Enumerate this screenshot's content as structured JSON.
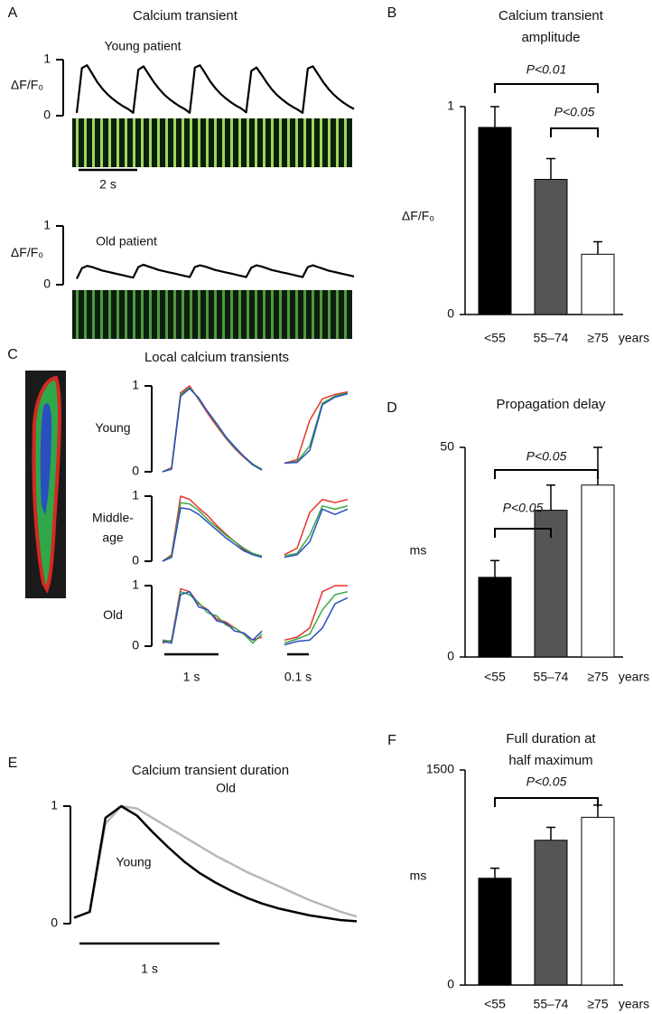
{
  "chart_data": [
    {
      "panel": "A",
      "type": "line",
      "title": "Calcium transient",
      "ylabel": "ΔF/F₀",
      "ylim": [
        0,
        1
      ],
      "yticks": [
        0,
        1
      ],
      "scale_bar": "2 s",
      "series": [
        {
          "name": "Young patient",
          "color": "#000000",
          "values": [
            0.05,
            0.85,
            0.9,
            0.75,
            0.6,
            0.48,
            0.38,
            0.3,
            0.23,
            0.17,
            0.12,
            0.05,
            0.82,
            0.88,
            0.74,
            0.6,
            0.48,
            0.38,
            0.3,
            0.23,
            0.17,
            0.12,
            0.05,
            0.86,
            0.9,
            0.76,
            0.61,
            0.49,
            0.39,
            0.31,
            0.24,
            0.18,
            0.13,
            0.06,
            0.8,
            0.86,
            0.73,
            0.59,
            0.47,
            0.37,
            0.29,
            0.22,
            0.16,
            0.11,
            0.05,
            0.84,
            0.88,
            0.74,
            0.6,
            0.48,
            0.38,
            0.3,
            0.23,
            0.17,
            0.12
          ]
        },
        {
          "name": "Old patient",
          "color": "#000000",
          "values": [
            0.1,
            0.28,
            0.32,
            0.3,
            0.27,
            0.24,
            0.22,
            0.2,
            0.18,
            0.16,
            0.14,
            0.12,
            0.3,
            0.34,
            0.31,
            0.28,
            0.25,
            0.23,
            0.21,
            0.19,
            0.17,
            0.15,
            0.13,
            0.3,
            0.33,
            0.31,
            0.28,
            0.25,
            0.23,
            0.21,
            0.19,
            0.17,
            0.15,
            0.13,
            0.29,
            0.33,
            0.31,
            0.28,
            0.25,
            0.23,
            0.21,
            0.19,
            0.17,
            0.15,
            0.13,
            0.3,
            0.33,
            0.3,
            0.27,
            0.24,
            0.22,
            0.2,
            0.18,
            0.16,
            0.14
          ]
        }
      ]
    },
    {
      "panel": "B",
      "type": "bar",
      "title": [
        "Calcium transient",
        "amplitude"
      ],
      "ylabel": "ΔF/F₀",
      "categories": [
        "<55",
        "55–74",
        "≥75"
      ],
      "x_unit": "years",
      "values": [
        0.9,
        0.65,
        0.29
      ],
      "errors": [
        0.1,
        0.1,
        0.06
      ],
      "colors": [
        "#000000",
        "#555555",
        "#ffffff"
      ],
      "ylim": [
        0,
        1
      ],
      "yticks": [
        0,
        1
      ],
      "annotations": [
        {
          "text": "P<0.01",
          "from": 0,
          "to": 2
        },
        {
          "text": "P<0.05",
          "from": 1,
          "to": 2
        }
      ]
    },
    {
      "panel": "C",
      "type": "line",
      "title": "Local calcium transients",
      "ylim": [
        0,
        1
      ],
      "yticks": [
        0,
        1
      ],
      "scale_bars": [
        "1 s",
        "0.1 s"
      ],
      "rows": [
        {
          "label": [
            "Young"
          ],
          "series": [
            {
              "color": "#e8332a",
              "values": [
                0,
                0.05,
                0.92,
                1,
                0.84,
                0.68,
                0.53,
                0.39,
                0.27,
                0.17,
                0.08,
                0.02
              ]
            },
            {
              "color": "#3aa845",
              "values": [
                0,
                0.04,
                0.9,
                0.98,
                0.85,
                0.7,
                0.55,
                0.4,
                0.28,
                0.18,
                0.09,
                0.03
              ]
            },
            {
              "color": "#2a4fc0",
              "values": [
                0,
                0.03,
                0.88,
                0.97,
                0.86,
                0.7,
                0.56,
                0.41,
                0.29,
                0.18,
                0.08,
                0.02
              ]
            }
          ],
          "zoom_series": [
            {
              "color": "#e8332a",
              "values": [
                0.1,
                0.14,
                0.6,
                0.85,
                0.9,
                0.93
              ]
            },
            {
              "color": "#3aa845",
              "values": [
                0.1,
                0.12,
                0.3,
                0.8,
                0.88,
                0.92
              ]
            },
            {
              "color": "#2a4fc0",
              "values": [
                0.1,
                0.11,
                0.25,
                0.78,
                0.87,
                0.91
              ]
            }
          ]
        },
        {
          "label": [
            "Middle-",
            "age"
          ],
          "series": [
            {
              "color": "#e8332a",
              "values": [
                0,
                0.1,
                1,
                0.95,
                0.82,
                0.7,
                0.55,
                0.42,
                0.3,
                0.18,
                0.1,
                0.08
              ]
            },
            {
              "color": "#3aa845",
              "values": [
                0,
                0.08,
                0.9,
                0.88,
                0.78,
                0.64,
                0.52,
                0.4,
                0.3,
                0.2,
                0.12,
                0.08
              ]
            },
            {
              "color": "#2a4fc0",
              "values": [
                0,
                0.06,
                0.82,
                0.8,
                0.72,
                0.6,
                0.48,
                0.36,
                0.26,
                0.16,
                0.1,
                0.06
              ]
            }
          ],
          "zoom_series": [
            {
              "color": "#e8332a",
              "values": [
                0.1,
                0.2,
                0.75,
                0.95,
                0.9,
                0.95
              ]
            },
            {
              "color": "#3aa845",
              "values": [
                0.08,
                0.12,
                0.4,
                0.85,
                0.8,
                0.85
              ]
            },
            {
              "color": "#2a4fc0",
              "values": [
                0.06,
                0.1,
                0.3,
                0.8,
                0.72,
                0.8
              ]
            }
          ]
        },
        {
          "label": [
            "Old"
          ],
          "series": [
            {
              "color": "#e8332a",
              "values": [
                0.05,
                0.1,
                0.95,
                0.9,
                0.7,
                0.6,
                0.45,
                0.4,
                0.3,
                0.2,
                0.1,
                0.15
              ]
            },
            {
              "color": "#3aa845",
              "values": [
                0.1,
                0.08,
                0.9,
                0.85,
                0.72,
                0.55,
                0.5,
                0.35,
                0.3,
                0.2,
                0.05,
                0.2
              ]
            },
            {
              "color": "#2a4fc0",
              "values": [
                0.08,
                0.05,
                0.85,
                0.9,
                0.65,
                0.6,
                0.42,
                0.38,
                0.25,
                0.22,
                0.1,
                0.25
              ]
            }
          ],
          "zoom_series": [
            {
              "color": "#e8332a",
              "values": [
                0.1,
                0.15,
                0.3,
                0.9,
                1,
                1
              ]
            },
            {
              "color": "#3aa845",
              "values": [
                0.05,
                0.12,
                0.2,
                0.6,
                0.85,
                0.9
              ]
            },
            {
              "color": "#2a4fc0",
              "values": [
                0.02,
                0.08,
                0.1,
                0.3,
                0.7,
                0.8
              ]
            }
          ]
        }
      ]
    },
    {
      "panel": "D",
      "type": "bar",
      "title": [
        "Propagation delay"
      ],
      "ylabel": "ms",
      "categories": [
        "<55",
        "55–74",
        "≥75"
      ],
      "x_unit": "years",
      "values": [
        19,
        35,
        41
      ],
      "errors": [
        4,
        6,
        9
      ],
      "colors": [
        "#000000",
        "#555555",
        "#ffffff"
      ],
      "ylim": [
        0,
        50
      ],
      "yticks": [
        0,
        50
      ],
      "annotations": [
        {
          "text": "P<0.05",
          "from": 0,
          "to": 2
        },
        {
          "text": "P<0.05",
          "from": 0,
          "to": 1
        }
      ]
    },
    {
      "panel": "E",
      "type": "line",
      "title": "Calcium transient duration",
      "ylim": [
        0,
        1
      ],
      "yticks": [
        0,
        1
      ],
      "scale_bar": "1 s",
      "series": [
        {
          "name": "Old",
          "color": "#b8b8b8",
          "values": [
            0.05,
            0.1,
            0.85,
            1,
            0.98,
            0.9,
            0.82,
            0.74,
            0.66,
            0.58,
            0.51,
            0.44,
            0.38,
            0.32,
            0.26,
            0.2,
            0.15,
            0.1,
            0.06
          ]
        },
        {
          "name": "Young",
          "color": "#000000",
          "values": [
            0.05,
            0.1,
            0.9,
            1,
            0.92,
            0.78,
            0.65,
            0.53,
            0.43,
            0.35,
            0.28,
            0.22,
            0.17,
            0.13,
            0.1,
            0.07,
            0.05,
            0.03,
            0.02
          ]
        }
      ]
    },
    {
      "panel": "F",
      "type": "bar",
      "title": [
        "Full duration at",
        "half maximum"
      ],
      "ylabel": "ms",
      "categories": [
        "<55",
        "55–74",
        "≥75"
      ],
      "x_unit": "years",
      "values": [
        745,
        1010,
        1170
      ],
      "errors": [
        70,
        90,
        85
      ],
      "colors": [
        "#000000",
        "#555555",
        "#ffffff"
      ],
      "ylim": [
        0,
        1500
      ],
      "yticks": [
        0,
        1500
      ],
      "annotations": [
        {
          "text": "P<0.05",
          "from": 0,
          "to": 2
        }
      ]
    }
  ]
}
